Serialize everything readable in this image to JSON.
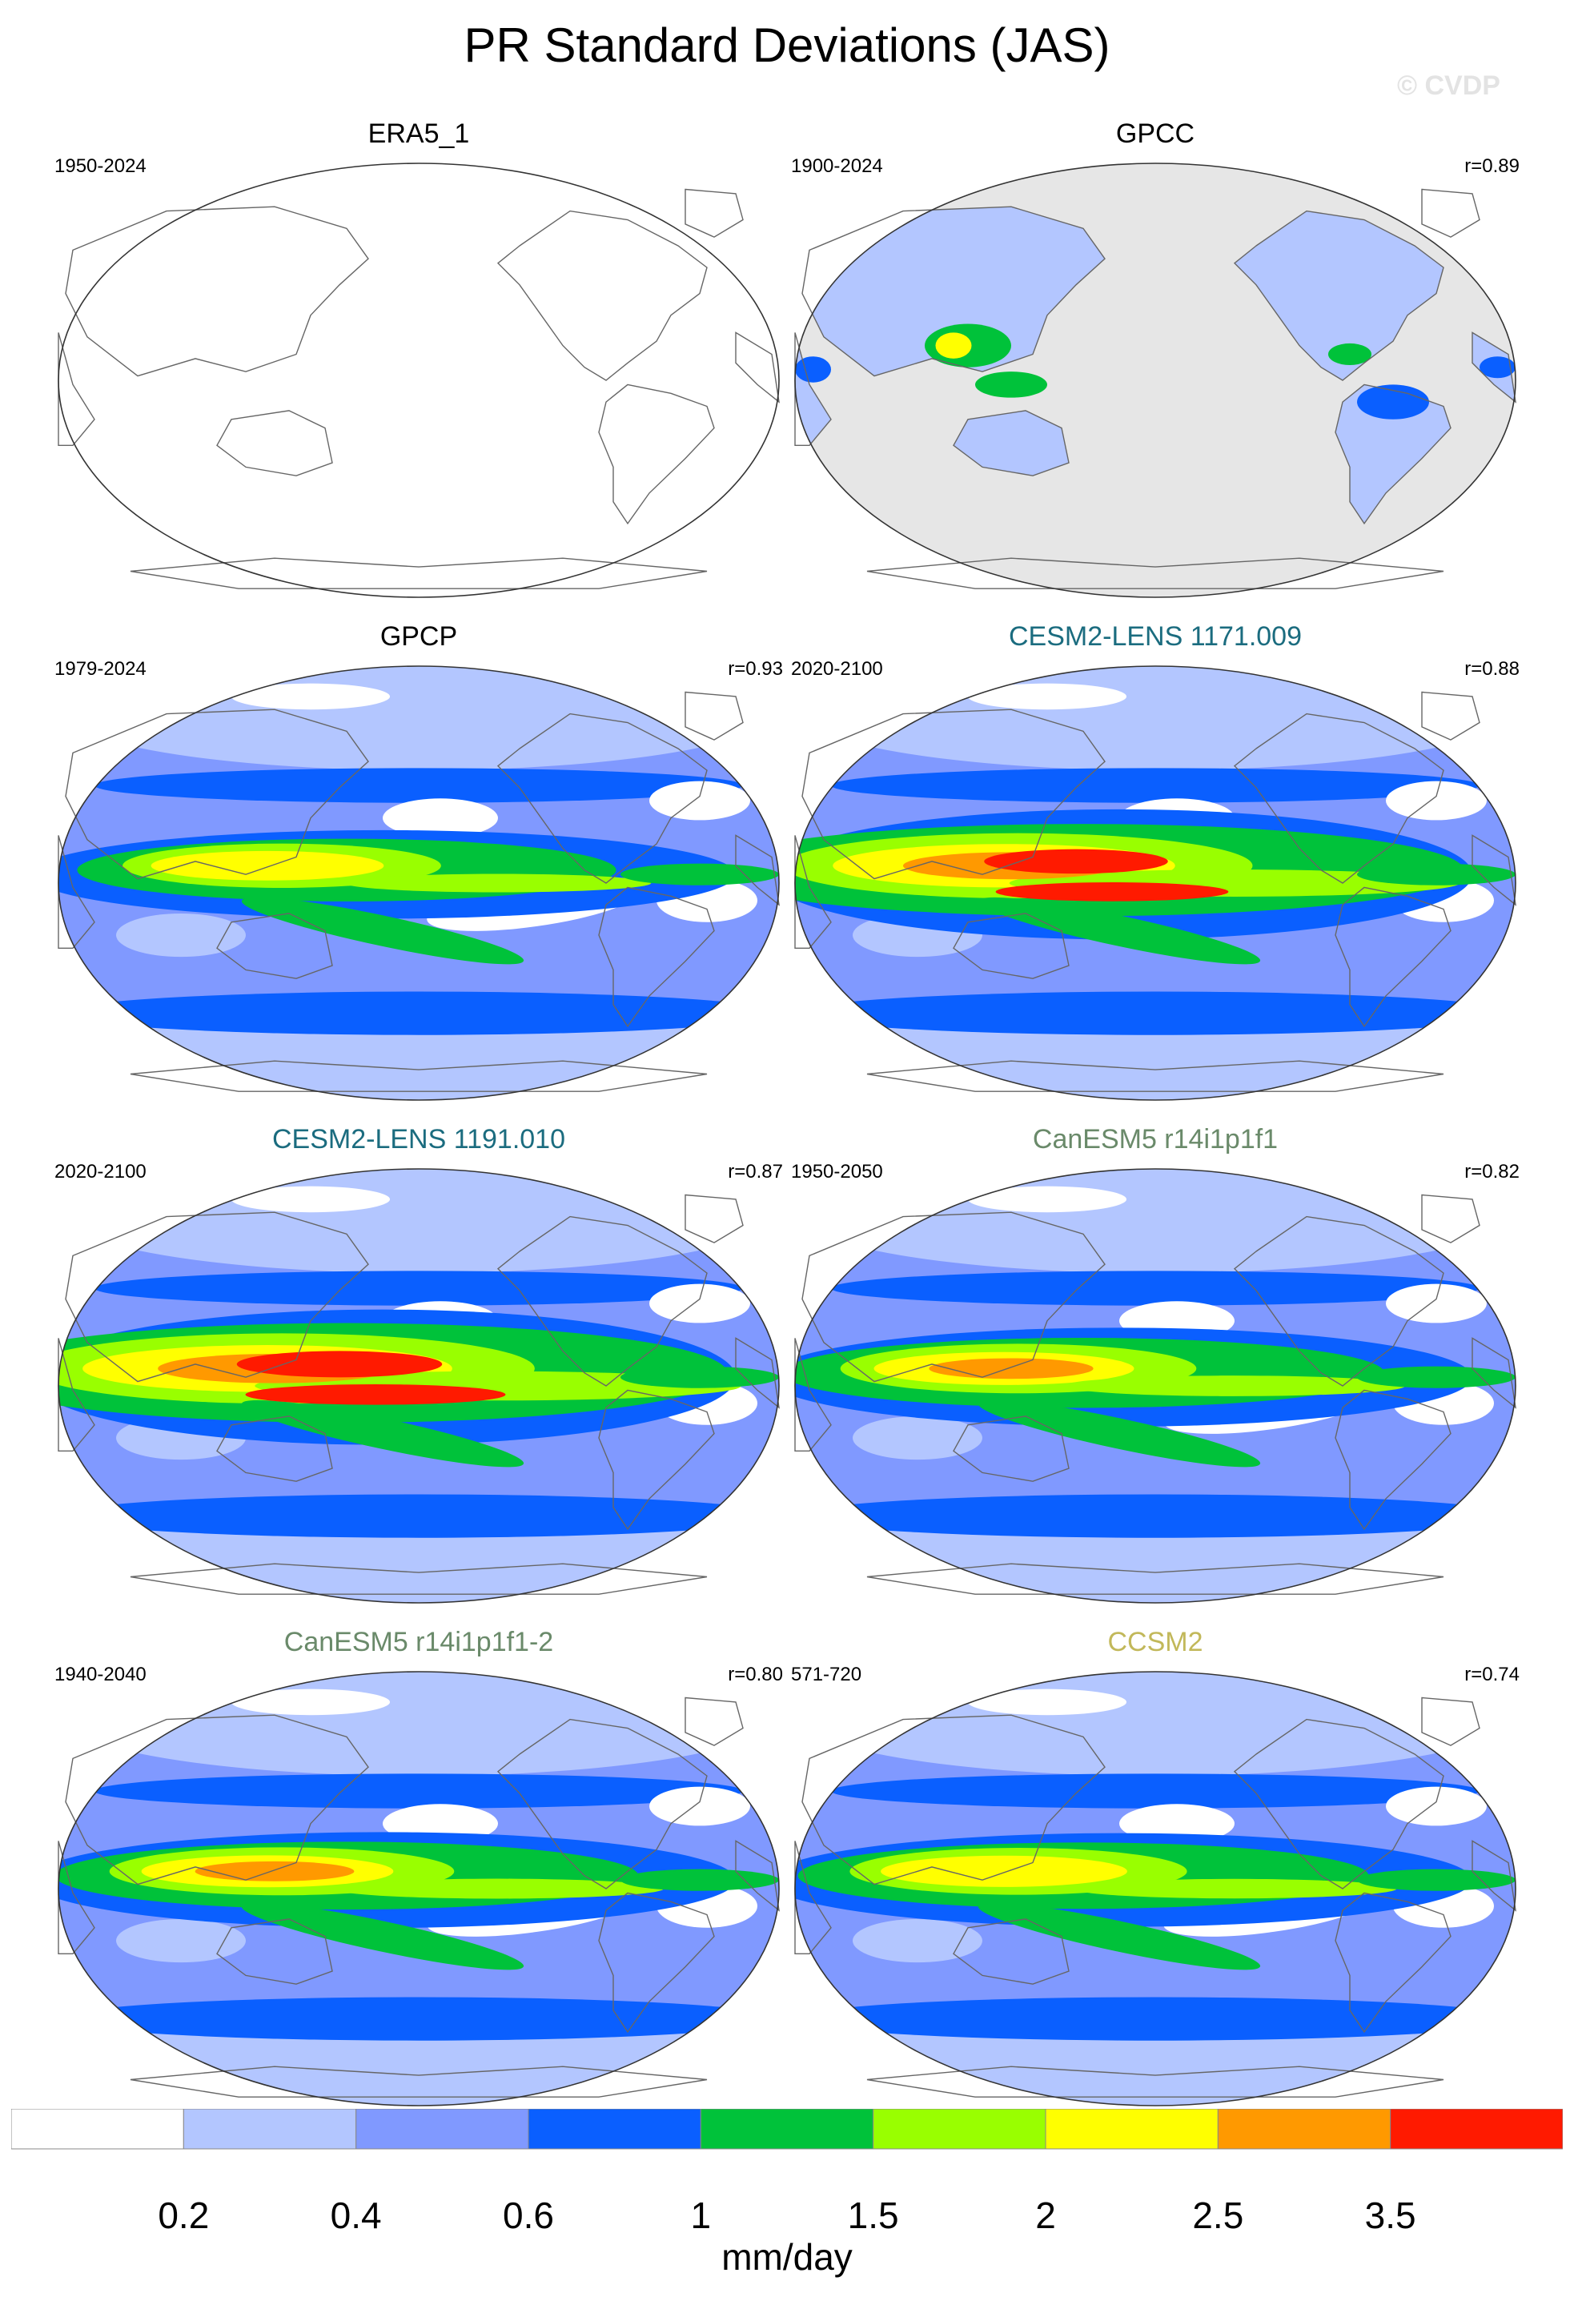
{
  "title": "PR Standard Deviations (JAS)",
  "watermark": "© CVDP",
  "colors": {
    "levels": [
      "#ffffff",
      "#b3c6ff",
      "#8099ff",
      "#0a5fff",
      "#00c23a",
      "#99ff00",
      "#ffff00",
      "#ff9900",
      "#ff1a00"
    ],
    "land_background": "#e6e6e6",
    "title_teal": "#1b6c7f",
    "title_green": "#6a8a6a",
    "title_khaki": "#c2b85a"
  },
  "panels": [
    {
      "title": "ERA5_1",
      "years": "1950-2024",
      "r": "",
      "title_color": "#000000",
      "style": "empty"
    },
    {
      "title": "GPCC",
      "years": "1900-2024",
      "r": "r=0.89",
      "title_color": "#000000",
      "style": "gpcc"
    },
    {
      "title": "GPCP",
      "years": "1979-2024",
      "r": "r=0.93",
      "title_color": "#000000",
      "style": "field",
      "intensity": 0.85
    },
    {
      "title": "CESM2-LENS 1171.009",
      "years": "2020-2100",
      "r": "r=0.88",
      "title_color": "#1b6c7f",
      "style": "field",
      "intensity": 1.25
    },
    {
      "title": "CESM2-LENS 1191.010",
      "years": "2020-2100",
      "r": "r=0.87",
      "title_color": "#1b6c7f",
      "style": "field",
      "intensity": 1.35
    },
    {
      "title": "CanESM5 r14i1p1f1",
      "years": "1950-2050",
      "r": "r=0.82",
      "title_color": "#6a8a6a",
      "style": "field",
      "intensity": 0.95
    },
    {
      "title": "CanESM5 r14i1p1f1-2",
      "years": "1940-2040",
      "r": "r=0.80",
      "title_color": "#6a8a6a",
      "style": "field",
      "intensity": 0.92
    },
    {
      "title": "CCSM2",
      "years": "571-720",
      "r": "r=0.74",
      "title_color": "#c2b85a",
      "style": "field",
      "intensity": 0.9
    }
  ],
  "colorbar": {
    "tick_labels": [
      "0.2",
      "0.4",
      "0.6",
      "1",
      "1.5",
      "2",
      "2.5",
      "3.5"
    ],
    "units": "mm/day"
  }
}
